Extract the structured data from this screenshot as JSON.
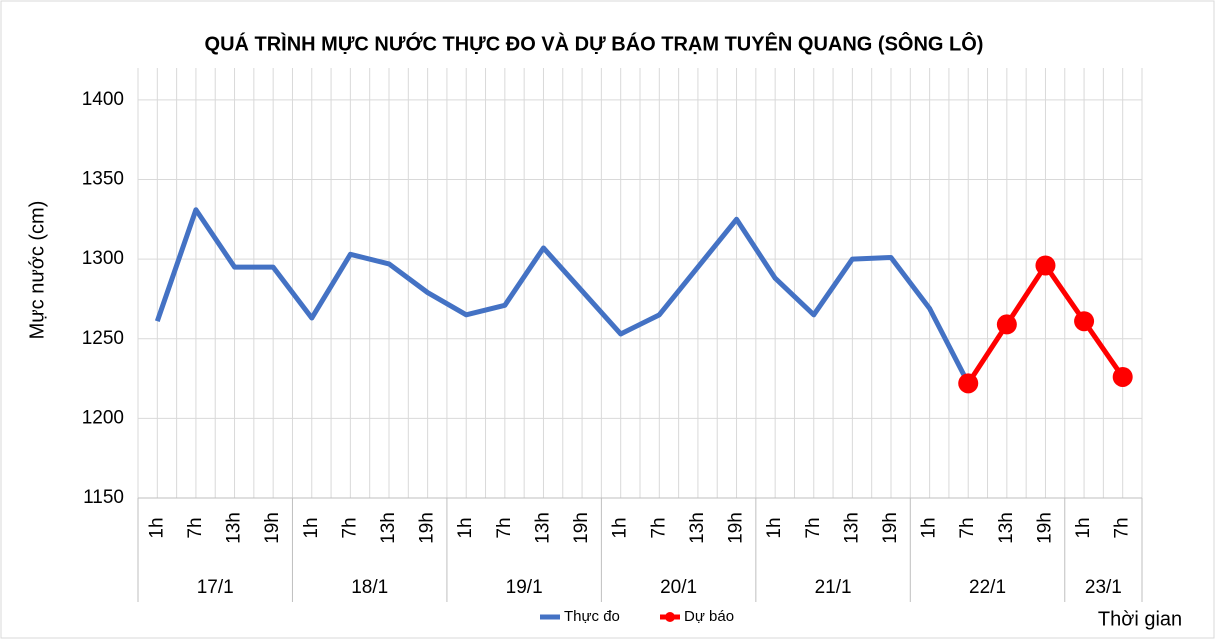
{
  "chart_data": {
    "type": "line",
    "title": "QUÁ TRÌNH MỰC NƯỚC THỰC ĐO VÀ DỰ BÁO TRẠM TUYÊN QUANG (SÔNG LÔ)",
    "y_label": "Mực nước (cm)",
    "x_label": "Thời gian",
    "categories": [
      "1h",
      "7h",
      "13h",
      "19h",
      "1h",
      "7h",
      "13h",
      "19h",
      "1h",
      "7h",
      "13h",
      "19h",
      "1h",
      "7h",
      "13h",
      "19h",
      "1h",
      "7h",
      "13h",
      "19h",
      "1h",
      "7h",
      "13h",
      "19h",
      "1h",
      "7h"
    ],
    "days": [
      "17/1",
      null,
      null,
      null,
      "18/1",
      null,
      null,
      null,
      "19/1",
      null,
      null,
      null,
      "20/1",
      null,
      null,
      null,
      "21/1",
      null,
      null,
      null,
      "22/1",
      null,
      null,
      null,
      "23/1",
      null
    ],
    "series": [
      {
        "name": "Thực đo",
        "color": "#4472c4",
        "marker": false,
        "values": [
          1261,
          1331,
          1295,
          1295,
          1263,
          1303,
          1297,
          1279,
          1265,
          1271,
          1307,
          1280,
          1253,
          1265,
          1295,
          1325,
          1288,
          1265,
          1300,
          1301,
          1269,
          1222,
          null,
          null,
          null,
          null
        ]
      },
      {
        "name": "Dự báo",
        "color": "#ff0000",
        "marker": true,
        "values": [
          null,
          null,
          null,
          null,
          null,
          null,
          null,
          null,
          null,
          null,
          null,
          null,
          null,
          null,
          null,
          null,
          null,
          null,
          null,
          null,
          null,
          1222,
          1259,
          1296,
          1261,
          1226
        ]
      }
    ],
    "ylim": [
      1150,
      1420
    ],
    "yticks": [
      1150,
      1200,
      1250,
      1300,
      1350,
      1400
    ],
    "grid": true,
    "legend": "bottom"
  }
}
